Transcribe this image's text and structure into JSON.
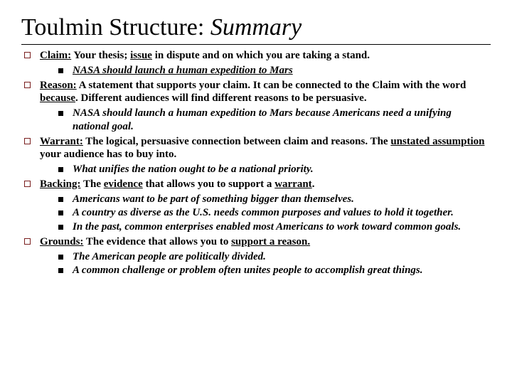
{
  "title_main": "Toulmin Structure: ",
  "title_italic": "Summary",
  "items": [
    {
      "term": "Claim:",
      "text_before_u": " Your thesis; ",
      "u1": "issue",
      "text_after_u": " in dispute and on which you are taking a stand.",
      "subs": [
        {
          "text": "NASA should launch a human expedition to Mars"
        }
      ]
    },
    {
      "term": "Reason:",
      "text_before_u": " A statement that supports your claim. It can be connected to the Claim with the word ",
      "u1": "because",
      "text_after_u": ". Different audiences will find different reasons to be persuasive.",
      "subs": [
        {
          "text": "NASA should launch a human expedition to Mars because Americans need a unifying national goal."
        }
      ]
    },
    {
      "term": "Warrant:",
      "text_before_u": " The logical, persuasive connection between claim and reasons. The ",
      "u1": "unstated assumption",
      "text_after_u": " your audience has to buy into.",
      "subs": [
        {
          "text": "What unifies the nation ought to be a national priority."
        }
      ]
    },
    {
      "term": "Backing:",
      "text_before_u": " The ",
      "u1": "evidence",
      "text_mid": " that allows you to support a ",
      "u2": "warrant",
      "text_after_u": ".",
      "subs": [
        {
          "text": "Americans want to be part of something bigger than themselves."
        },
        {
          "text": "A country as diverse as the U.S. needs common purposes and values to hold it together."
        },
        {
          "text": "In the past, common enterprises enabled most Americans to work toward common goals."
        }
      ]
    },
    {
      "term": "Grounds:",
      "text_before_u": " The evidence that allows you to ",
      "u1": "support a reason.",
      "text_after_u": "",
      "subs": [
        {
          "text": "The American people are politically divided."
        },
        {
          "text": "A common challenge or problem often unites people to accomplish great things."
        }
      ]
    }
  ]
}
